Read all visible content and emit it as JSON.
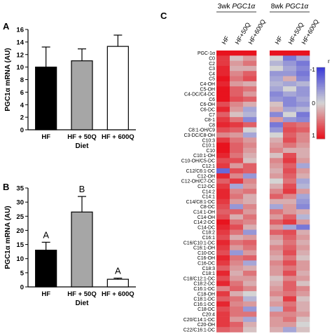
{
  "panels": {
    "a": "A",
    "b": "B",
    "c": "C"
  },
  "chart_data": [
    {
      "type": "bar",
      "panel": "A",
      "categories": [
        "HF",
        "HF + 50Q",
        "HF + 600Q"
      ],
      "values": [
        10.0,
        11.0,
        13.3
      ],
      "errors": [
        3.2,
        1.9,
        1.8
      ],
      "fills": [
        "#000000",
        "#a6a6a6",
        "#ffffff"
      ],
      "xlabel": "Diet",
      "ylabel": "PGC1α mRNA (AU)",
      "ylim": [
        0,
        16
      ],
      "yticks": [
        "0",
        "2",
        "4",
        "6",
        "8",
        "10",
        "12",
        "14",
        "16"
      ],
      "annotations": []
    },
    {
      "type": "bar",
      "panel": "B",
      "categories": [
        "HF",
        "HF + 50Q",
        "HF + 600Q"
      ],
      "values": [
        13.0,
        26.5,
        2.7
      ],
      "errors": [
        2.8,
        5.5,
        0.4
      ],
      "fills": [
        "#000000",
        "#a6a6a6",
        "#ffffff"
      ],
      "xlabel": "Diet",
      "ylabel": "PGC1α mRNA (AU)",
      "ylim": [
        0,
        35
      ],
      "yticks": [
        "0",
        "5",
        "10",
        "15",
        "20",
        "25",
        "30",
        "35"
      ],
      "annotations": [
        "A",
        "B",
        "A"
      ]
    },
    {
      "type": "heatmap",
      "panel": "C",
      "groups": [
        {
          "title_prefix": "3wk ",
          "title_gene": "PGC1α",
          "columns": [
            "HF",
            "HF+50Q",
            "HF+600Q"
          ]
        },
        {
          "title_prefix": "8wk ",
          "title_gene": "PGC1α",
          "columns": [
            "HF",
            "HF+50Q",
            "HF+600Q"
          ]
        }
      ],
      "rows": [
        "PGC-1α",
        "C0",
        "C2",
        "C3",
        "C4",
        "C5",
        "C4-OH",
        "C5-OH",
        "C4-DC/C4-DC",
        "C6",
        "C6-OH",
        "C6-DC",
        "C7",
        "C8-1",
        "C8",
        "C8:1-OH/C9",
        "C3-DC/C8-OH",
        "C10:3",
        "C10:1",
        "C10",
        "C10:1-OH",
        "C10-OH/C5-DC",
        "C12:1",
        "C12/C6:1-DC",
        "C12-OH",
        "C12-OH/C7-DC",
        "C12-DC",
        "C14:2",
        "C14:1",
        "C14/C8:1-DC",
        "C8-DC",
        "C14:1-OH",
        "C14-OH",
        "C14:2-DC",
        "C14-DC",
        "C18:2",
        "C16:1",
        "C16/C10:1-DC",
        "C16:1-OH",
        "C10-DC",
        "C16-OH",
        "C16-DC",
        "C18:3",
        "C18:1",
        "C18/C12:1-DC",
        "C18:2-DC",
        "C16:1-DC",
        "C18-OH",
        "C18:1-DC",
        "C16:1-DC",
        "C18-DC",
        "C20:4",
        "C20/C14:1-DC",
        "C20-OH",
        "C22/C16:1-DC"
      ],
      "values": [
        [
          1.0,
          1.0,
          1.0,
          1.0,
          1.0,
          1.0
        ],
        [
          0.8,
          0.1,
          0.3,
          0.0,
          -0.6,
          -0.3
        ],
        [
          0.8,
          0.3,
          0.5,
          -0.2,
          -0.4,
          -0.6
        ],
        [
          0.9,
          0.2,
          0.2,
          0.0,
          -0.3,
          -0.5
        ],
        [
          0.9,
          0.4,
          0.6,
          -0.4,
          -0.4,
          -0.6
        ],
        [
          1.0,
          0.5,
          0.7,
          -0.3,
          0.2,
          -0.5
        ],
        [
          0.9,
          0.3,
          0.2,
          -0.2,
          -0.3,
          -0.2
        ],
        [
          1.0,
          0.6,
          0.5,
          -0.3,
          0.0,
          -0.4
        ],
        [
          1.0,
          0.6,
          0.3,
          -0.5,
          -0.3,
          -0.4
        ],
        [
          1.0,
          0.7,
          0.6,
          -0.4,
          -0.5,
          -0.3
        ],
        [
          0.7,
          0.4,
          0.2,
          0.1,
          -0.5,
          -0.4
        ],
        [
          0.9,
          0.3,
          -0.3,
          0.2,
          -0.3,
          -0.2
        ],
        [
          0.6,
          0.1,
          -0.2,
          -0.5,
          0.0,
          -0.6
        ],
        [
          0.8,
          0.5,
          -0.5,
          0.3,
          -0.4,
          -0.5
        ],
        [
          0.9,
          0.8,
          0.6,
          -0.6,
          0.6,
          0.5
        ],
        [
          0.7,
          0.6,
          0.0,
          -0.4,
          0.7,
          0.6
        ],
        [
          0.4,
          0.3,
          -0.3,
          0.0,
          0.6,
          0.4
        ],
        [
          0.8,
          0.5,
          0.3,
          0.2,
          0.7,
          0.4
        ],
        [
          1.0,
          0.6,
          0.4,
          0.3,
          0.5,
          0.3
        ],
        [
          1.0,
          0.6,
          0.3,
          0.4,
          0.2,
          0.2
        ],
        [
          0.9,
          0.5,
          0.2,
          0.1,
          0.7,
          0.2
        ],
        [
          0.7,
          0.7,
          0.1,
          0.4,
          0.8,
          0.3
        ],
        [
          0.8,
          0.3,
          0.6,
          0.3,
          0.6,
          -0.3
        ],
        [
          -0.7,
          0.7,
          0.6,
          0.2,
          0.7,
          0.3
        ],
        [
          0.9,
          0.4,
          -0.4,
          0.3,
          0.6,
          0.2
        ],
        [
          0.6,
          0.8,
          0.4,
          0.0,
          0.5,
          -0.3
        ],
        [
          0.8,
          -0.3,
          0.3,
          0.2,
          0.7,
          -0.2
        ],
        [
          0.9,
          0.4,
          0.5,
          0.4,
          0.8,
          0.3
        ],
        [
          0.9,
          0.5,
          0.2,
          0.6,
          0.4,
          -0.3
        ],
        [
          0.8,
          0.3,
          0.2,
          0.2,
          0.2,
          -0.4
        ],
        [
          0.7,
          -0.4,
          0.4,
          -0.3,
          0.3,
          -0.5
        ],
        [
          0.6,
          0.6,
          0.3,
          0.5,
          0.3,
          0.2
        ],
        [
          0.7,
          0.2,
          0.5,
          0.3,
          0.6,
          -0.2
        ],
        [
          1.0,
          0.5,
          0.4,
          0.6,
          0.8,
          0.3
        ],
        [
          0.9,
          0.7,
          0.2,
          0.3,
          -0.3,
          -0.6
        ],
        [
          0.8,
          0.5,
          -0.4,
          0.6,
          0.7,
          0.2
        ],
        [
          0.7,
          0.2,
          0.3,
          0.3,
          0.6,
          0.3
        ],
        [
          0.9,
          0.5,
          0.6,
          0.2,
          0.5,
          0.2
        ],
        [
          0.8,
          0.3,
          0.5,
          0.4,
          0.6,
          0.3
        ],
        [
          0.7,
          -0.4,
          0.3,
          0.3,
          0.7,
          0.2
        ],
        [
          0.9,
          0.5,
          0.6,
          0.2,
          0.5,
          0.1
        ],
        [
          0.8,
          0.4,
          -0.3,
          0.4,
          0.7,
          0.3
        ],
        [
          0.6,
          0.3,
          0.2,
          0.3,
          0.5,
          0.3
        ],
        [
          0.9,
          0.2,
          0.5,
          0.3,
          0.7,
          0.2
        ],
        [
          0.7,
          0.3,
          0.3,
          0.1,
          0.4,
          0.3
        ],
        [
          0.9,
          0.5,
          0.2,
          0.2,
          0.6,
          0.1
        ],
        [
          0.4,
          0.6,
          0.4,
          0.3,
          0.6,
          0.4
        ],
        [
          0.8,
          0.2,
          0.0,
          0.4,
          0.5,
          0.3
        ],
        [
          0.6,
          0.5,
          -0.2,
          0.2,
          0.8,
          0.1
        ],
        [
          0.9,
          0.4,
          0.3,
          0.3,
          0.5,
          0.2
        ],
        [
          0.7,
          0.5,
          -0.4,
          -0.2,
          0.6,
          0.2
        ],
        [
          0.8,
          0.5,
          0.5,
          0.4,
          0.4,
          0.3
        ],
        [
          0.8,
          0.3,
          -0.3,
          0.3,
          0.5,
          0.1
        ],
        [
          0.8,
          0.6,
          0.2,
          0.3,
          0.3,
          0.0
        ],
        [
          0.6,
          0.5,
          0.1,
          0.2,
          -0.3,
          0.1
        ]
      ],
      "scale": {
        "title": "r",
        "ticks": [
          "-1",
          "0",
          "1"
        ],
        "low_color": "#3b3bd9",
        "mid_color": "#d4d4d4",
        "high_color": "#e8131e"
      }
    }
  ]
}
